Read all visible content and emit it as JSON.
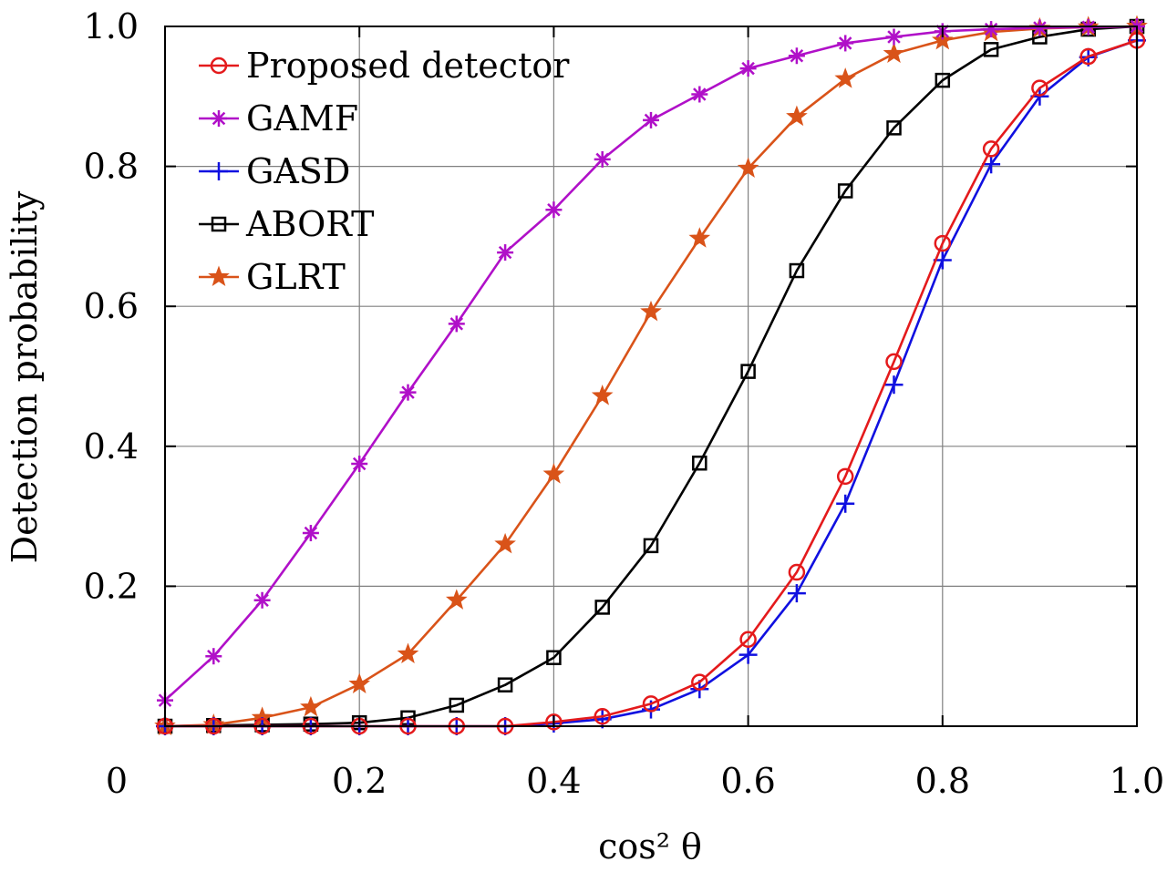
{
  "chart_data": {
    "type": "line",
    "title": "",
    "xlabel": "cos² θ",
    "ylabel": "Detection probability",
    "xlim": [
      0,
      1.0
    ],
    "ylim": [
      0,
      1.0
    ],
    "grid": true,
    "legend_position": "top-left",
    "x_ticks": [
      {
        "value": 0,
        "label": "0"
      },
      {
        "value": 0.2,
        "label": "0.2"
      },
      {
        "value": 0.4,
        "label": "0.4"
      },
      {
        "value": 0.6,
        "label": "0.6"
      },
      {
        "value": 0.8,
        "label": "0.8"
      },
      {
        "value": 1.0,
        "label": "1.0"
      }
    ],
    "y_ticks": [
      {
        "value": 0.2,
        "label": "0.2"
      },
      {
        "value": 0.4,
        "label": "0.4"
      },
      {
        "value": 0.6,
        "label": "0.6"
      },
      {
        "value": 0.8,
        "label": "0.8"
      },
      {
        "value": 1.0,
        "label": "1.0"
      }
    ],
    "x": [
      0,
      0.05,
      0.1,
      0.15,
      0.2,
      0.25,
      0.3,
      0.35,
      0.4,
      0.45,
      0.5,
      0.55,
      0.6,
      0.65,
      0.7,
      0.75,
      0.8,
      0.85,
      0.9,
      0.95,
      1.0
    ],
    "series": [
      {
        "name": "Proposed detector",
        "color": "#e41a1c",
        "marker": "circle",
        "values": [
          0.0,
          0.0,
          0.0,
          0.0,
          0.0,
          0.0,
          0.0,
          0.0,
          0.006,
          0.014,
          0.032,
          0.063,
          0.124,
          0.22,
          0.357,
          0.521,
          0.69,
          0.825,
          0.912,
          0.957,
          0.98
        ]
      },
      {
        "name": "GAMF",
        "color": "#b010c8",
        "marker": "asterisk",
        "values": [
          0.037,
          0.1,
          0.18,
          0.276,
          0.375,
          0.477,
          0.575,
          0.677,
          0.738,
          0.81,
          0.866,
          0.903,
          0.94,
          0.958,
          0.976,
          0.985,
          0.993,
          0.996,
          0.998,
          0.999,
          1.0
        ]
      },
      {
        "name": "GASD",
        "color": "#1010e0",
        "marker": "plus",
        "values": [
          0.0,
          0.0,
          0.0,
          0.0,
          0.0,
          0.0,
          0.0,
          0.0,
          0.004,
          0.01,
          0.024,
          0.053,
          0.102,
          0.19,
          0.318,
          0.488,
          0.666,
          0.803,
          0.9,
          0.956,
          0.98
        ]
      },
      {
        "name": "ABORT",
        "color": "#000000",
        "marker": "square",
        "values": [
          0.0,
          0.001,
          0.002,
          0.003,
          0.005,
          0.012,
          0.03,
          0.059,
          0.098,
          0.17,
          0.258,
          0.376,
          0.507,
          0.651,
          0.765,
          0.855,
          0.923,
          0.967,
          0.985,
          0.996,
          1.0
        ]
      },
      {
        "name": "GLRT",
        "color": "#d95319",
        "marker": "star",
        "values": [
          0.0,
          0.002,
          0.012,
          0.027,
          0.06,
          0.103,
          0.18,
          0.26,
          0.36,
          0.472,
          0.592,
          0.697,
          0.797,
          0.871,
          0.925,
          0.961,
          0.98,
          0.992,
          0.997,
          0.999,
          1.0
        ]
      }
    ]
  }
}
